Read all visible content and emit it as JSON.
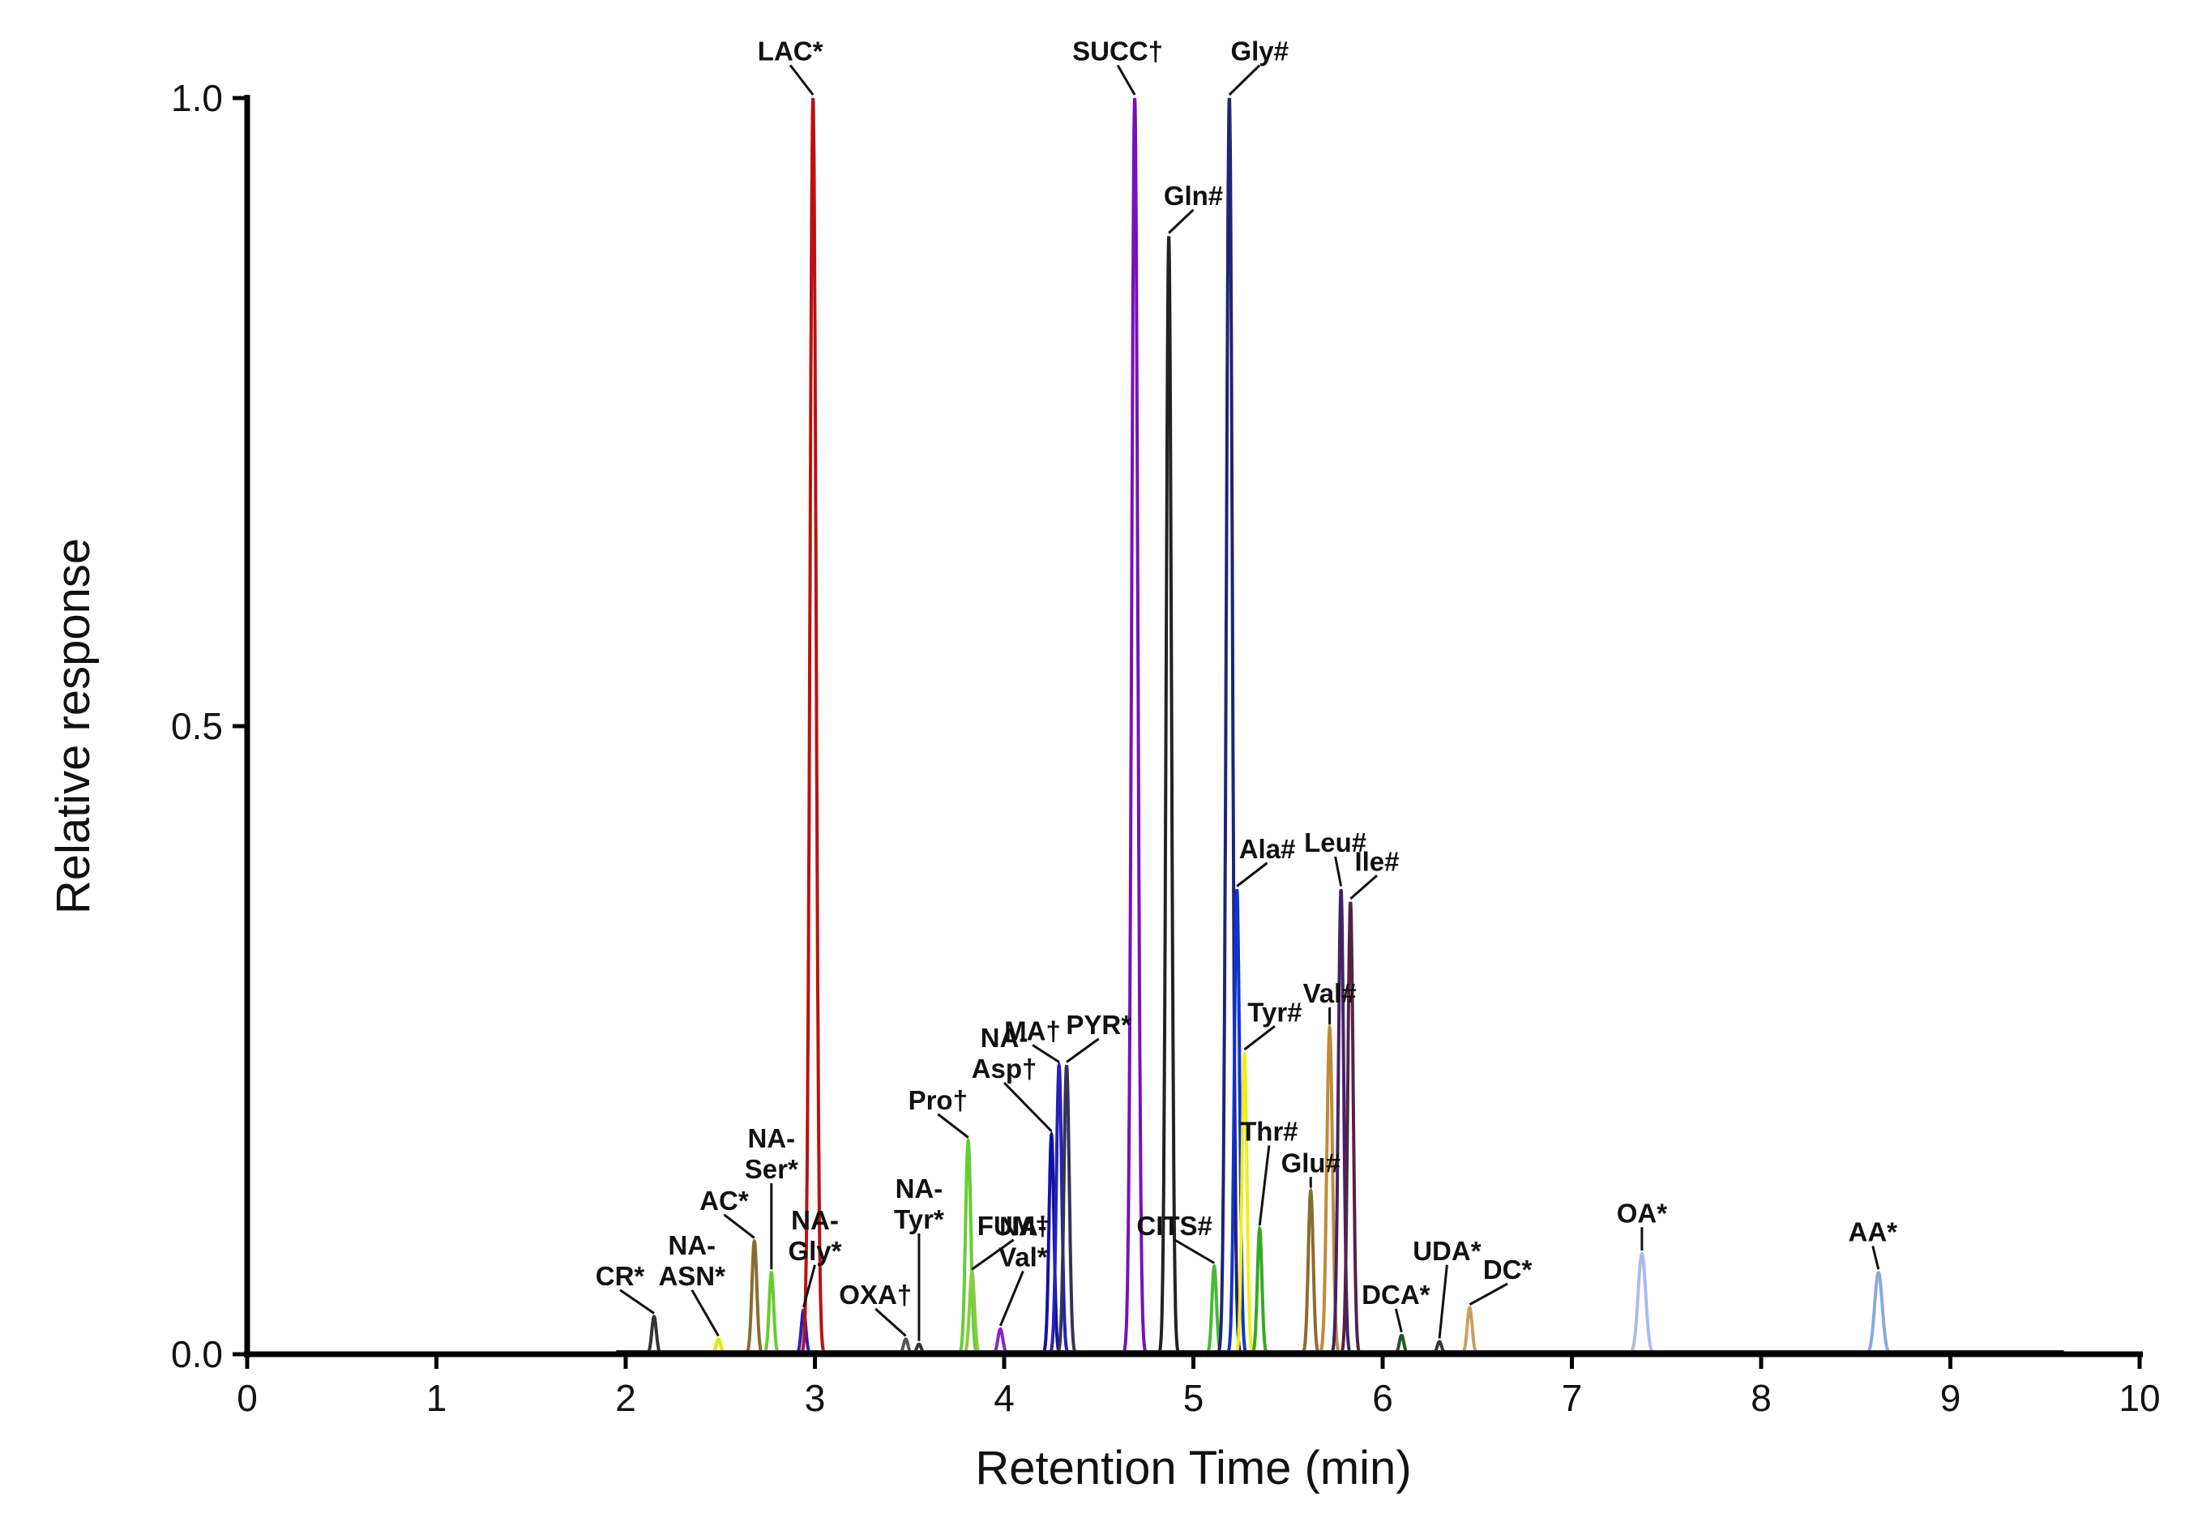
{
  "chart_data": {
    "type": "line",
    "title": "",
    "xlabel": "Retention Time (min)",
    "ylabel": "Relative response",
    "xlim": [
      0,
      10
    ],
    "ylim": [
      0,
      1
    ],
    "x_ticks": [
      0,
      1,
      2,
      3,
      4,
      5,
      6,
      7,
      8,
      9,
      10
    ],
    "x_tick_labels": [
      "0",
      "1",
      "2",
      "3",
      "4",
      "5",
      "6",
      "7",
      "8",
      "9",
      "10"
    ],
    "y_ticks": [
      0,
      0.5,
      1
    ],
    "y_tick_labels": [
      "0.0",
      "0.5",
      "1.0"
    ],
    "grid": false,
    "legend": "none",
    "series": [
      {
        "name": "CR*",
        "label": [
          "CR*"
        ],
        "rt": 2.15,
        "height": 0.03,
        "width": 0.012,
        "color": "#333333",
        "label_rt": 1.97,
        "label_y": 0.055
      },
      {
        "name": "NA-ASN*",
        "label": [
          "NA-",
          "ASN*"
        ],
        "rt": 2.49,
        "height": 0.012,
        "width": 0.012,
        "color": "#e8e600",
        "label_rt": 2.35,
        "label_y": 0.055
      },
      {
        "name": "AC*",
        "label": [
          "AC*"
        ],
        "rt": 2.68,
        "height": 0.09,
        "width": 0.013,
        "color": "#8b6b2e",
        "label_rt": 2.52,
        "label_y": 0.115
      },
      {
        "name": "NA-Ser*",
        "label": [
          "NA-",
          "Ser*"
        ],
        "rt": 2.77,
        "height": 0.065,
        "width": 0.012,
        "color": "#66cc33",
        "label_rt": 2.77,
        "label_y": 0.14
      },
      {
        "name": "NA-Gly*",
        "label": [
          "NA-",
          "Gly*"
        ],
        "rt": 2.94,
        "height": 0.035,
        "width": 0.012,
        "color": "#2222cc",
        "label_rt": 3.0,
        "label_y": 0.075
      },
      {
        "name": "LAC*",
        "label": [
          "LAC*"
        ],
        "rt": 2.99,
        "height": 1.0,
        "width": 0.016,
        "color": "#bb1111",
        "label_rt": 2.87,
        "label_y": 1.03
      },
      {
        "name": "OXA†",
        "label": [
          "OXA†"
        ],
        "rt": 3.48,
        "height": 0.012,
        "width": 0.012,
        "color": "#555555",
        "label_rt": 3.32,
        "label_y": 0.04
      },
      {
        "name": "NA-Tyr*",
        "label": [
          "NA-",
          "Tyr*"
        ],
        "rt": 3.55,
        "height": 0.008,
        "width": 0.012,
        "color": "#333333",
        "label_rt": 3.55,
        "label_y": 0.1
      },
      {
        "name": "Pro†",
        "label": [
          "Pro†"
        ],
        "rt": 3.81,
        "height": 0.17,
        "width": 0.014,
        "color": "#66cc33",
        "label_rt": 3.65,
        "label_y": 0.195
      },
      {
        "name": "FUM†",
        "label": [
          "FUM†"
        ],
        "rt": 3.83,
        "height": 0.065,
        "width": 0.013,
        "color": "#88cc44",
        "label_rt": 4.05,
        "label_y": 0.095
      },
      {
        "name": "NA-Val*",
        "label": [
          "NA-",
          "Val*"
        ],
        "rt": 3.98,
        "height": 0.02,
        "width": 0.013,
        "color": "#8822cc",
        "label_rt": 4.1,
        "label_y": 0.07
      },
      {
        "name": "NA-Asp†",
        "label": [
          "NA-",
          "Asp†"
        ],
        "rt": 4.25,
        "height": 0.175,
        "width": 0.013,
        "color": "#1111aa",
        "label_rt": 4.0,
        "label_y": 0.22
      },
      {
        "name": "MA†",
        "label": [
          "MA†"
        ],
        "rt": 4.29,
        "height": 0.23,
        "width": 0.014,
        "color": "#2222bb",
        "label_rt": 4.15,
        "label_y": 0.25
      },
      {
        "name": "PYR*",
        "label": [
          "PYR*"
        ],
        "rt": 4.33,
        "height": 0.23,
        "width": 0.014,
        "color": "#333355",
        "label_rt": 4.5,
        "label_y": 0.255
      },
      {
        "name": "SUCC†",
        "label": [
          "SUCC†"
        ],
        "rt": 4.69,
        "height": 1.0,
        "width": 0.016,
        "color": "#7711bb",
        "label_rt": 4.6,
        "label_y": 1.03
      },
      {
        "name": "Gln#",
        "label": [
          "Gln#"
        ],
        "rt": 4.87,
        "height": 0.89,
        "width": 0.014,
        "color": "#222222",
        "label_rt": 5.0,
        "label_y": 0.915
      },
      {
        "name": "CITS#",
        "label": [
          "CITS#"
        ],
        "rt": 5.11,
        "height": 0.07,
        "width": 0.012,
        "color": "#44bb33",
        "label_rt": 4.9,
        "label_y": 0.095
      },
      {
        "name": "Gly#",
        "label": [
          "Gly#"
        ],
        "rt": 5.19,
        "height": 1.0,
        "width": 0.016,
        "color": "#222277",
        "label_rt": 5.35,
        "label_y": 1.03
      },
      {
        "name": "Ala#",
        "label": [
          "Ala#"
        ],
        "rt": 5.23,
        "height": 0.37,
        "width": 0.014,
        "color": "#1133cc",
        "label_rt": 5.39,
        "label_y": 0.395
      },
      {
        "name": "Tyr#",
        "label": [
          "Tyr#"
        ],
        "rt": 5.27,
        "height": 0.24,
        "width": 0.013,
        "color": "#eeee22",
        "label_rt": 5.43,
        "label_y": 0.265
      },
      {
        "name": "Thr#",
        "label": [
          "Thr#"
        ],
        "rt": 5.35,
        "height": 0.1,
        "width": 0.012,
        "color": "#33aa22",
        "label_rt": 5.4,
        "label_y": 0.17
      },
      {
        "name": "Glu#",
        "label": [
          "Glu#"
        ],
        "rt": 5.62,
        "height": 0.13,
        "width": 0.013,
        "color": "#8b6b2e",
        "label_rt": 5.62,
        "label_y": 0.145
      },
      {
        "name": "Val#",
        "label": [
          "Val#"
        ],
        "rt": 5.72,
        "height": 0.26,
        "width": 0.015,
        "color": "#c08a3a",
        "label_rt": 5.72,
        "label_y": 0.28
      },
      {
        "name": "Leu#",
        "label": [
          "Leu#"
        ],
        "rt": 5.78,
        "height": 0.37,
        "width": 0.014,
        "color": "#442266",
        "label_rt": 5.75,
        "label_y": 0.4
      },
      {
        "name": "Ile#",
        "label": [
          "Ile#"
        ],
        "rt": 5.83,
        "height": 0.36,
        "width": 0.014,
        "color": "#552244",
        "label_rt": 5.97,
        "label_y": 0.385
      },
      {
        "name": "DCA*",
        "label": [
          "DCA*"
        ],
        "rt": 6.1,
        "height": 0.015,
        "width": 0.012,
        "color": "#225522",
        "label_rt": 6.07,
        "label_y": 0.04
      },
      {
        "name": "UDA*",
        "label": [
          "UDA*"
        ],
        "rt": 6.3,
        "height": 0.01,
        "width": 0.012,
        "color": "#333333",
        "label_rt": 6.34,
        "label_y": 0.075
      },
      {
        "name": "DC*",
        "label": [
          "DC*"
        ],
        "rt": 6.46,
        "height": 0.037,
        "width": 0.013,
        "color": "#c8a060",
        "label_rt": 6.66,
        "label_y": 0.06
      },
      {
        "name": "OA*",
        "label": [
          "OA*"
        ],
        "rt": 7.37,
        "height": 0.08,
        "width": 0.02,
        "color": "#aabbee",
        "label_rt": 7.37,
        "label_y": 0.105
      },
      {
        "name": "AA*",
        "label": [
          "AA*"
        ],
        "rt": 8.62,
        "height": 0.065,
        "width": 0.02,
        "color": "#88aadd",
        "label_rt": 8.59,
        "label_y": 0.09
      }
    ]
  }
}
